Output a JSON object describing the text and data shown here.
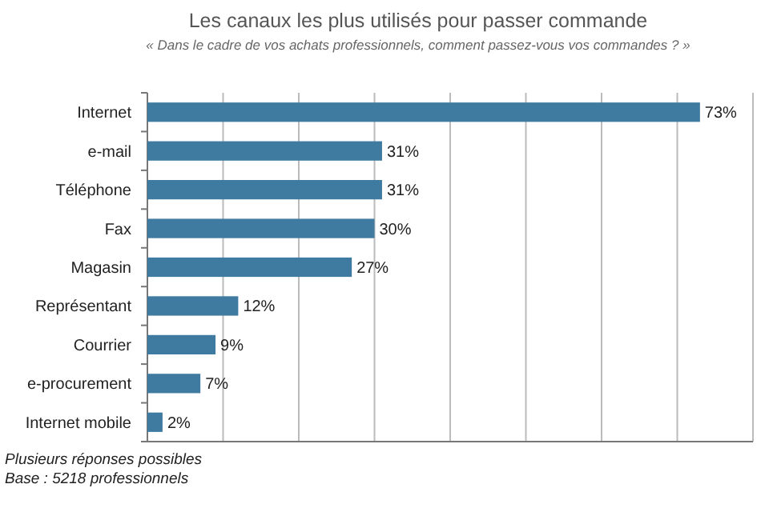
{
  "chart_data": {
    "type": "bar",
    "orientation": "horizontal",
    "title": "Les canaux les plus utilisés pour passer commande",
    "subtitle": "« Dans le cadre de vos achats professionnels, comment passez-vous vos commandes ? »",
    "categories": [
      "Internet",
      "e-mail",
      "Téléphone",
      "Fax",
      "Magasin",
      "Représentant",
      "Courrier",
      "e-procurement",
      "Internet mobile"
    ],
    "values": [
      73,
      31,
      31,
      30,
      27,
      12,
      9,
      7,
      2
    ],
    "value_labels": [
      "73%",
      "31%",
      "31%",
      "30%",
      "27%",
      "12%",
      "9%",
      "7%",
      "2%"
    ],
    "color": "#3f7ba1",
    "xlim": [
      0,
      80
    ],
    "xticks": [
      {
        "value": 0,
        "label": null
      },
      {
        "value": 10,
        "label": null
      },
      {
        "value": 20,
        "label": null
      },
      {
        "value": 30,
        "label": null
      },
      {
        "value": 40,
        "label": null
      },
      {
        "value": 50,
        "label": null
      },
      {
        "value": 60,
        "label": null
      },
      {
        "value": 70,
        "label": null
      },
      {
        "value": 80,
        "label": null
      }
    ],
    "tick_labels": "y",
    "grid": "x",
    "annotations": [
      "Plusieurs réponses possibles",
      "Base : 5218 professionnels"
    ]
  }
}
